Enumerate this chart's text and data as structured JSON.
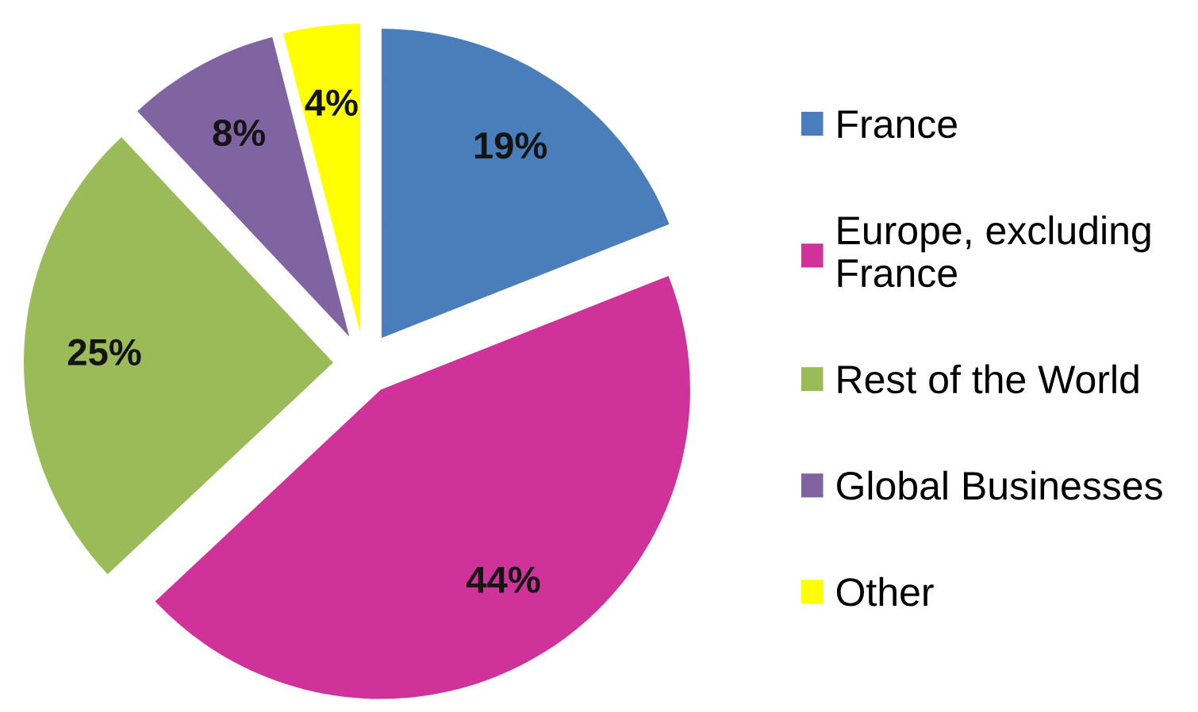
{
  "chart_data": {
    "type": "pie",
    "categories": [
      "France",
      "Europe, excluding France",
      "Rest of the World",
      "Global Businesses",
      "Other"
    ],
    "values": [
      19,
      44,
      25,
      8,
      4
    ],
    "colors": [
      "#4a7ebb",
      "#cf3399",
      "#9bbb59",
      "#8064a2",
      "#ffff00"
    ],
    "value_labels": [
      "19%",
      "44%",
      "25%",
      "8%",
      "4%"
    ],
    "legend": "right"
  }
}
